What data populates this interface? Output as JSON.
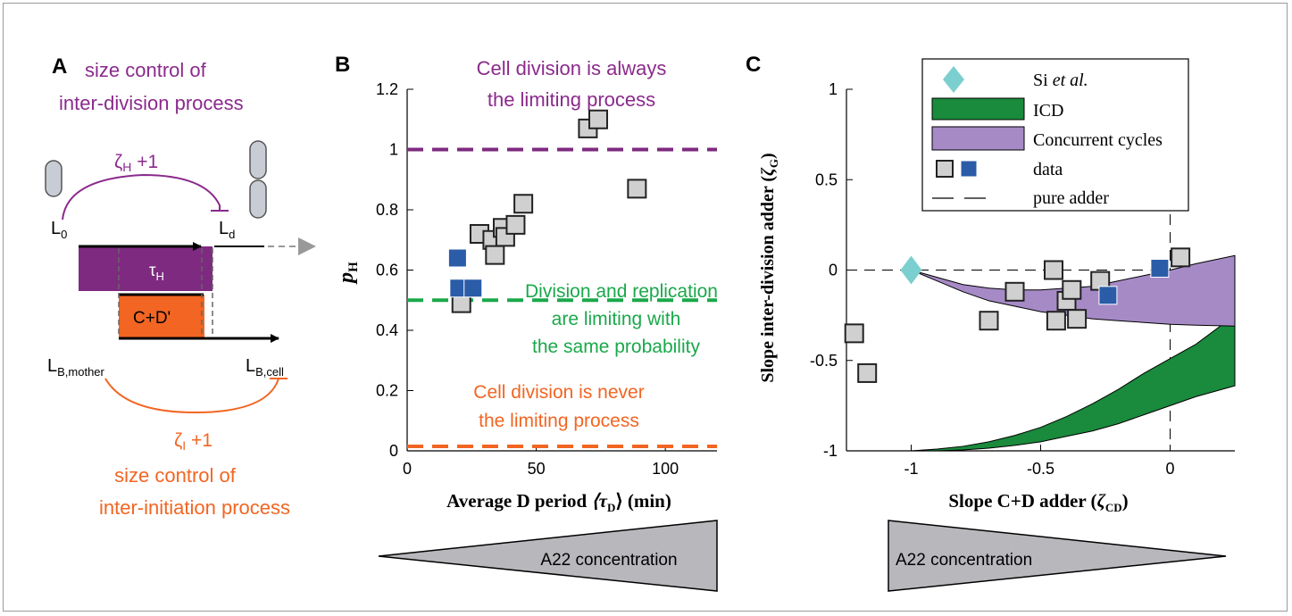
{
  "panel_a": {
    "label": "A",
    "top_caption_1": "size control of",
    "top_caption_2": "inter-division process",
    "zeta_h_symbol": "ζ",
    "zeta_h_sub": "H",
    "zeta_h_suffix": " +1",
    "l0_main": "L",
    "l0_sub": "0",
    "ld_main": "L",
    "ld_sub": "d",
    "tau_h_main": "τ",
    "tau_h_sub": "H",
    "cd_label": "C+D'",
    "lb_mother_main": "L",
    "lb_mother_sub": "B,mother",
    "lb_cell_main": "L",
    "lb_cell_sub": "B,cell",
    "zeta_i_symbol": "ζ",
    "zeta_i_sub": "I",
    "zeta_i_suffix": " +1",
    "bottom_caption_1": "size control of",
    "bottom_caption_2": "inter-initiation process",
    "colors": {
      "purple": "#8b2a8c",
      "orange": "#f26522",
      "purple_fill": "#7e2a80",
      "orange_fill": "#f26522"
    }
  },
  "panel_b": {
    "label": "B",
    "title_line1": "Cell division is always",
    "title_line2": "the limiting process",
    "mid_line1": "Division and replication",
    "mid_line2": "are  limiting with",
    "mid_line3": "the same probability",
    "low_line1": "Cell division is never",
    "low_line2": "the limiting process",
    "ylabel_main": "p",
    "ylabel_sub": "H",
    "xlabel_text": "Average D period ",
    "xlabel_math": "⟨τ",
    "xlabel_sub": "D",
    "xlabel_close": "⟩ (min)",
    "gradient_label": "A22 concentration"
  },
  "panel_c": {
    "label": "C",
    "ylabel_text": "Slope inter-division adder (",
    "ylabel_math": "ζ",
    "ylabel_sub": "G",
    "ylabel_close": ")",
    "xlabel_text": "Slope C+D adder (",
    "xlabel_math": "ζ",
    "xlabel_sub": "CD",
    "xlabel_close": ")",
    "gradient_label": "A22 concentration",
    "legend": {
      "si_pre": "Si ",
      "si_em": "et al.",
      "icd": "ICD",
      "concurrent": "Concurrent cycles",
      "data": "data",
      "pure_adder": "pure adder"
    }
  },
  "chart_data": [
    {
      "type": "scatter",
      "panel": "B",
      "xlim": [
        0,
        120
      ],
      "ylim": [
        0,
        1.2
      ],
      "xticks": [
        0,
        50,
        100
      ],
      "yticks": [
        0,
        0.2,
        0.4,
        0.6,
        0.8,
        1,
        1.2
      ],
      "xtick_labels": [
        "0",
        "50",
        "100"
      ],
      "ytick_labels": [
        "0",
        "0.2",
        "0.4",
        "0.6",
        "0.8",
        "1",
        "1.2"
      ],
      "reference_lines": [
        {
          "y": 1.0,
          "color": "#7e2a80"
        },
        {
          "y": 0.5,
          "color": "#1aa84a"
        },
        {
          "y": 0.015,
          "color": "#f26522"
        }
      ],
      "series": [
        {
          "color": "#d0d0d0",
          "points": [
            [
              21,
              0.49
            ],
            [
              28,
              0.72
            ],
            [
              33,
              0.7
            ],
            [
              34,
              0.65
            ],
            [
              37,
              0.74
            ],
            [
              38,
              0.71
            ],
            [
              42,
              0.75
            ],
            [
              45,
              0.82
            ],
            [
              70,
              1.07
            ],
            [
              74,
              1.1
            ],
            [
              89,
              0.87
            ]
          ]
        },
        {
          "color": "#2a5ca8",
          "points": [
            [
              19.5,
              0.64
            ],
            [
              20,
              0.54
            ],
            [
              25.5,
              0.54
            ]
          ]
        }
      ]
    },
    {
      "type": "scatter",
      "panel": "C",
      "xlim": [
        -1.25,
        0.25
      ],
      "ylim": [
        -1,
        1
      ],
      "xticks": [
        -1,
        -0.5,
        0
      ],
      "yticks": [
        -1,
        -0.5,
        0,
        0.5,
        1
      ],
      "xtick_labels": [
        "-1",
        "-0.5",
        "0"
      ],
      "ytick_labels": [
        "-1",
        "-0.5",
        "0",
        "0.5",
        "1"
      ],
      "si_point": [
        -1.0,
        0.0
      ],
      "series": [
        {
          "color": "#d0d0d0",
          "points": [
            [
              -1.22,
              -0.35
            ],
            [
              -1.17,
              -0.57
            ],
            [
              -0.7,
              -0.28
            ],
            [
              -0.6,
              -0.12
            ],
            [
              -0.45,
              0.0
            ],
            [
              -0.44,
              -0.28
            ],
            [
              -0.4,
              -0.17
            ],
            [
              -0.38,
              -0.11
            ],
            [
              -0.36,
              -0.27
            ],
            [
              -0.27,
              -0.06
            ],
            [
              0.04,
              0.07
            ]
          ]
        },
        {
          "color": "#2a5ca8",
          "points": [
            [
              -0.24,
              -0.14
            ],
            [
              -0.04,
              0.01
            ]
          ]
        }
      ],
      "concurrent_band": {
        "x": [
          -1.0,
          -0.9,
          -0.8,
          -0.7,
          -0.6,
          -0.5,
          -0.4,
          -0.3,
          -0.2,
          -0.1,
          0.0,
          0.1,
          0.25
        ],
        "upper": [
          0.0,
          -0.04,
          -0.08,
          -0.1,
          -0.11,
          -0.11,
          -0.1,
          -0.09,
          -0.06,
          -0.03,
          0.0,
          0.035,
          0.08
        ],
        "lower": [
          0.0,
          -0.06,
          -0.12,
          -0.17,
          -0.2,
          -0.23,
          -0.25,
          -0.27,
          -0.28,
          -0.29,
          -0.3,
          -0.305,
          -0.31
        ]
      },
      "icd_band": {
        "x": [
          -1.0,
          -0.9,
          -0.8,
          -0.7,
          -0.6,
          -0.5,
          -0.4,
          -0.3,
          -0.2,
          -0.1,
          0.0,
          0.1,
          0.25
        ],
        "upper": [
          -1.0,
          -0.99,
          -0.975,
          -0.95,
          -0.915,
          -0.87,
          -0.81,
          -0.74,
          -0.66,
          -0.57,
          -0.49,
          -0.41,
          -0.25
        ],
        "lower": [
          -1.0,
          -1.0,
          -0.995,
          -0.985,
          -0.97,
          -0.95,
          -0.92,
          -0.89,
          -0.85,
          -0.8,
          -0.75,
          -0.7,
          -0.64
        ]
      }
    }
  ]
}
